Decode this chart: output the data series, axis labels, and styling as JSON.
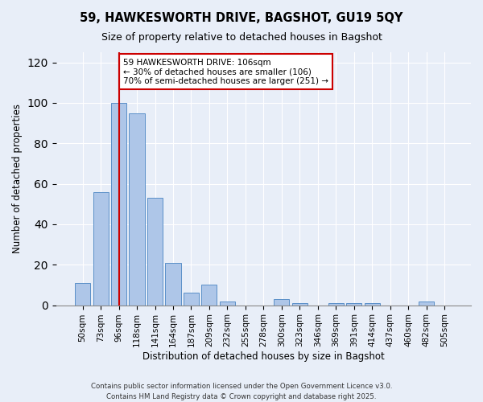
{
  "title1": "59, HAWKESWORTH DRIVE, BAGSHOT, GU19 5QY",
  "title2": "Size of property relative to detached houses in Bagshot",
  "xlabel": "Distribution of detached houses by size in Bagshot",
  "ylabel": "Number of detached properties",
  "bins": [
    "50sqm",
    "73sqm",
    "96sqm",
    "118sqm",
    "141sqm",
    "164sqm",
    "187sqm",
    "209sqm",
    "232sqm",
    "255sqm",
    "278sqm",
    "300sqm",
    "323sqm",
    "346sqm",
    "369sqm",
    "391sqm",
    "414sqm",
    "437sqm",
    "460sqm",
    "482sqm",
    "505sqm"
  ],
  "values": [
    11,
    56,
    100,
    95,
    53,
    21,
    6,
    10,
    2,
    0,
    0,
    3,
    1,
    0,
    1,
    1,
    1,
    0,
    0,
    2,
    0
  ],
  "bar_color": "#aec6e8",
  "bar_edge_color": "#5a8fc8",
  "vline_x": 2,
  "vline_color": "#cc0000",
  "annotation_text": "59 HAWKESWORTH DRIVE: 106sqm\n← 30% of detached houses are smaller (106)\n70% of semi-detached houses are larger (251) →",
  "annotation_box_color": "#ffffff",
  "annotation_border_color": "#cc0000",
  "ylim": [
    0,
    125
  ],
  "yticks": [
    0,
    20,
    40,
    60,
    80,
    100,
    120
  ],
  "background_color": "#e8eef8",
  "footer1": "Contains HM Land Registry data © Crown copyright and database right 2025.",
  "footer2": "Contains public sector information licensed under the Open Government Licence v3.0."
}
